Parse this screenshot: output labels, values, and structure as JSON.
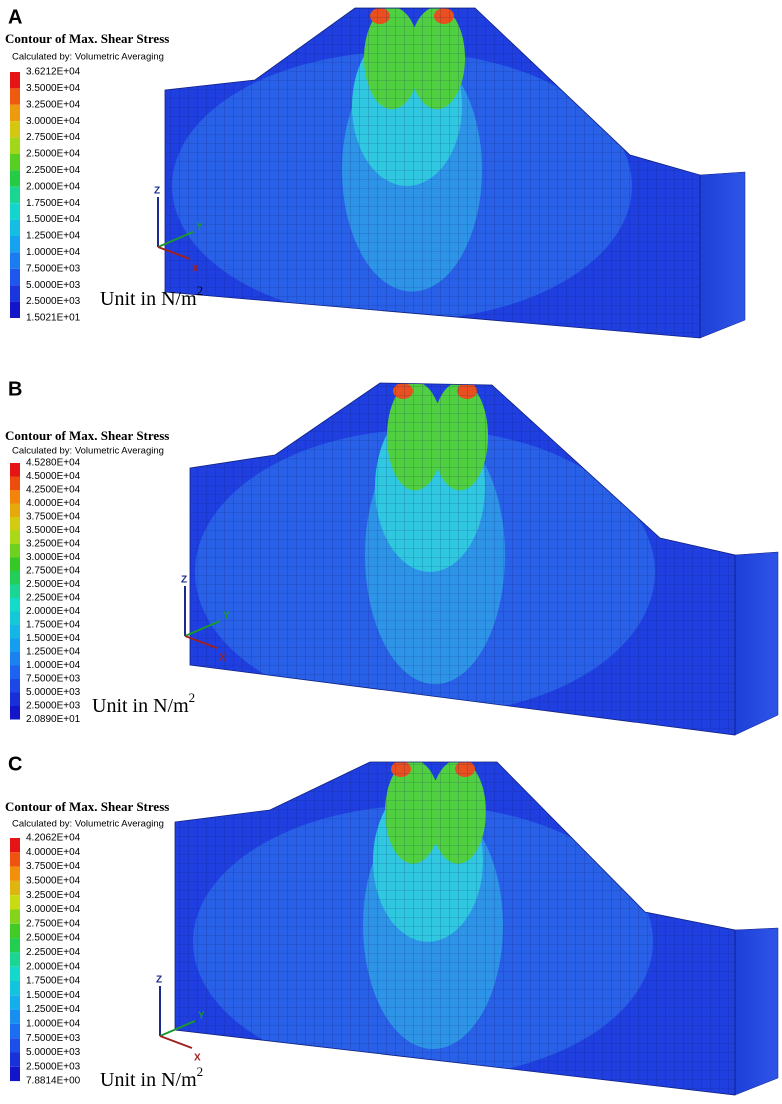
{
  "panels": [
    {
      "label": "A",
      "legend": {
        "title": "Contour of Max. Shear Stress",
        "subtitle": "Calculated by: Volumetric Averaging",
        "labels": [
          "3.6212E+04",
          "3.5000E+04",
          "3.2500E+04",
          "3.0000E+04",
          "2.7500E+04",
          "2.5000E+04",
          "2.2500E+04",
          "2.0000E+04",
          "1.7500E+04",
          "1.5000E+04",
          "1.2500E+04",
          "1.0000E+04",
          "7.5000E+03",
          "5.0000E+03",
          "2.5000E+03",
          "1.5021E+01"
        ]
      },
      "unit": {
        "text": "Unit in N/m",
        "superscript": "2"
      },
      "axes": [
        "Z",
        "Y",
        "X"
      ]
    },
    {
      "label": "B",
      "legend": {
        "title": "Contour of Max. Shear Stress",
        "subtitle": "Calculated by: Volumetric Averaging",
        "labels": [
          "4.5280E+04",
          "4.5000E+04",
          "4.2500E+04",
          "4.0000E+04",
          "3.7500E+04",
          "3.5000E+04",
          "3.2500E+04",
          "3.0000E+04",
          "2.7500E+04",
          "2.5000E+04",
          "2.2500E+04",
          "2.0000E+04",
          "1.7500E+04",
          "1.5000E+04",
          "1.2500E+04",
          "1.0000E+04",
          "7.5000E+03",
          "5.0000E+03",
          "2.5000E+03",
          "2.0890E+01"
        ]
      },
      "unit": {
        "text": "Unit in N/m",
        "superscript": "2"
      },
      "axes": [
        "Z",
        "Y",
        "X"
      ]
    },
    {
      "label": "C",
      "legend": {
        "title": "Contour of Max. Shear Stress",
        "subtitle": "Calculated by: Volumetric Averaging",
        "labels": [
          "4.2062E+04",
          "4.0000E+04",
          "3.7500E+04",
          "3.5000E+04",
          "3.2500E+04",
          "3.0000E+04",
          "2.7500E+04",
          "2.5000E+04",
          "2.2500E+04",
          "2.0000E+04",
          "1.7500E+04",
          "1.5000E+04",
          "1.2500E+04",
          "1.0000E+04",
          "7.5000E+03",
          "5.0000E+03",
          "2.5000E+03",
          "7.8814E+00"
        ]
      },
      "unit": {
        "text": "Unit in N/m",
        "superscript": "2"
      },
      "axes": [
        "Z",
        "Y",
        "X"
      ]
    }
  ]
}
